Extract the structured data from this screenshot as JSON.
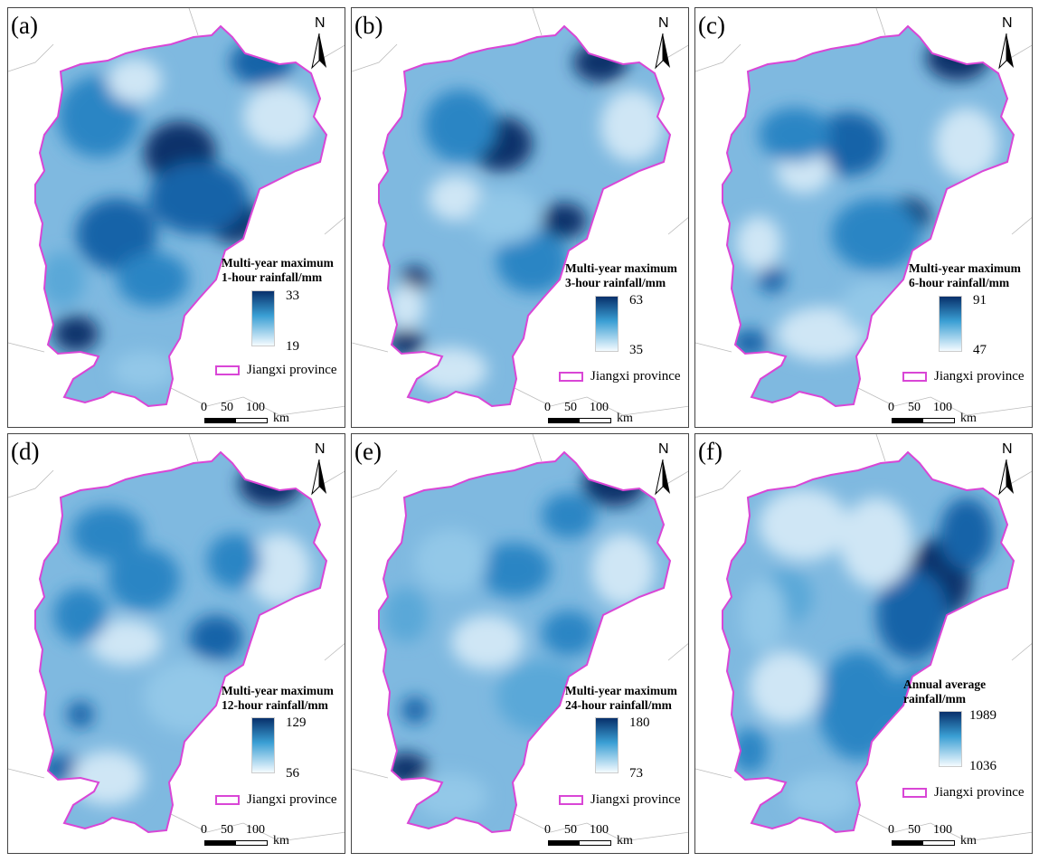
{
  "panels": [
    {
      "label": "(a)",
      "north": "N",
      "legend_line1": "Multi-year maximum",
      "legend_line2": "1-hour rainfall/mm",
      "max": "33",
      "min": "19",
      "province": "Jiangxi province",
      "scale_ticks": [
        "0",
        "50",
        "100"
      ],
      "scale_unit": "km"
    },
    {
      "label": "(b)",
      "north": "N",
      "legend_line1": "Multi-year maximum",
      "legend_line2": "3-hour rainfall/mm",
      "max": "63",
      "min": "35",
      "province": "Jiangxi province",
      "scale_ticks": [
        "0",
        "50",
        "100"
      ],
      "scale_unit": "km"
    },
    {
      "label": "(c)",
      "north": "N",
      "legend_line1": "Multi-year maximum",
      "legend_line2": "6-hour rainfall/mm",
      "max": "91",
      "min": "47",
      "province": "Jiangxi province",
      "scale_ticks": [
        "0",
        "50",
        "100"
      ],
      "scale_unit": "km"
    },
    {
      "label": "(d)",
      "north": "N",
      "legend_line1": "Multi-year maximum",
      "legend_line2": "12-hour rainfall/mm",
      "max": "129",
      "min": "56",
      "province": "Jiangxi province",
      "scale_ticks": [
        "0",
        "50",
        "100"
      ],
      "scale_unit": "km"
    },
    {
      "label": "(e)",
      "north": "N",
      "legend_line1": "Multi-year maximum",
      "legend_line2": "24-hour rainfall/mm",
      "max": "180",
      "min": "73",
      "province": "Jiangxi province",
      "scale_ticks": [
        "0",
        "50",
        "100"
      ],
      "scale_unit": "km"
    },
    {
      "label": "(f)",
      "north": "N",
      "legend_line1": "Annual average",
      "legend_line2": "rainfall/mm",
      "max": "1989",
      "min": "1036",
      "province": "Jiangxi province",
      "scale_ticks": [
        "0",
        "50",
        "100"
      ],
      "scale_unit": "km"
    }
  ],
  "colors": {
    "ramp_high": "#08306b",
    "ramp_mid": "#3a9fd4",
    "ramp_low": "#f4fbff",
    "boundary": "#d946d6"
  }
}
